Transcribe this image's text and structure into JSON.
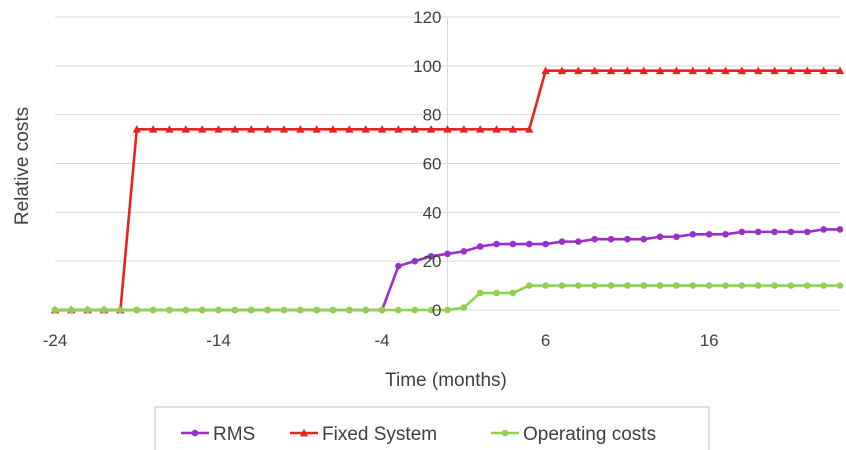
{
  "chart_data": {
    "type": "line",
    "title": "",
    "xlabel": "Time (months)",
    "ylabel": "Relative costs",
    "xlim": [
      -24,
      24
    ],
    "ylim": [
      0,
      120
    ],
    "x_ticks": [
      "-24",
      "-14",
      "-4",
      "6",
      "16"
    ],
    "y_ticks": [
      "0",
      "20",
      "40",
      "60",
      "80",
      "100",
      "120"
    ],
    "grid": "horizontal",
    "legend_position": "bottom",
    "x": [
      -24,
      -23,
      -22,
      -21,
      -20,
      -19,
      -18,
      -17,
      -16,
      -15,
      -14,
      -13,
      -12,
      -11,
      -10,
      -9,
      -8,
      -7,
      -6,
      -5,
      -4,
      -3,
      -2,
      -1,
      0,
      1,
      2,
      3,
      4,
      5,
      6,
      7,
      8,
      9,
      10,
      11,
      12,
      13,
      14,
      15,
      16,
      17,
      18,
      19,
      20,
      21,
      22,
      23,
      24
    ],
    "series": [
      {
        "name": "RMS",
        "color": "#9b30c8",
        "marker": "circle",
        "values": [
          0,
          0,
          0,
          0,
          0,
          0,
          0,
          0,
          0,
          0,
          0,
          0,
          0,
          0,
          0,
          0,
          0,
          0,
          0,
          0,
          0,
          18,
          20,
          22,
          23,
          24,
          26,
          27,
          27,
          27,
          27,
          28,
          28,
          29,
          29,
          29,
          29,
          30,
          30,
          31,
          31,
          31,
          32,
          32,
          32,
          32,
          32,
          33,
          33
        ]
      },
      {
        "name": "Fixed System",
        "color": "#e8231f",
        "marker": "triangle",
        "values": [
          0,
          0,
          0,
          0,
          0,
          74,
          74,
          74,
          74,
          74,
          74,
          74,
          74,
          74,
          74,
          74,
          74,
          74,
          74,
          74,
          74,
          74,
          74,
          74,
          74,
          74,
          74,
          74,
          74,
          74,
          98,
          98,
          98,
          98,
          98,
          98,
          98,
          98,
          98,
          98,
          98,
          98,
          98,
          98,
          98,
          98,
          98,
          98,
          98
        ]
      },
      {
        "name": "Operating costs",
        "color": "#92d050",
        "marker": "circle",
        "values": [
          0,
          0,
          0,
          0,
          0,
          0,
          0,
          0,
          0,
          0,
          0,
          0,
          0,
          0,
          0,
          0,
          0,
          0,
          0,
          0,
          0,
          0,
          0,
          0,
          0,
          1,
          7,
          7,
          7,
          10,
          10,
          10,
          10,
          10,
          10,
          10,
          10,
          10,
          10,
          10,
          10,
          10,
          10,
          10,
          10,
          10,
          10,
          10,
          10
        ]
      }
    ]
  }
}
